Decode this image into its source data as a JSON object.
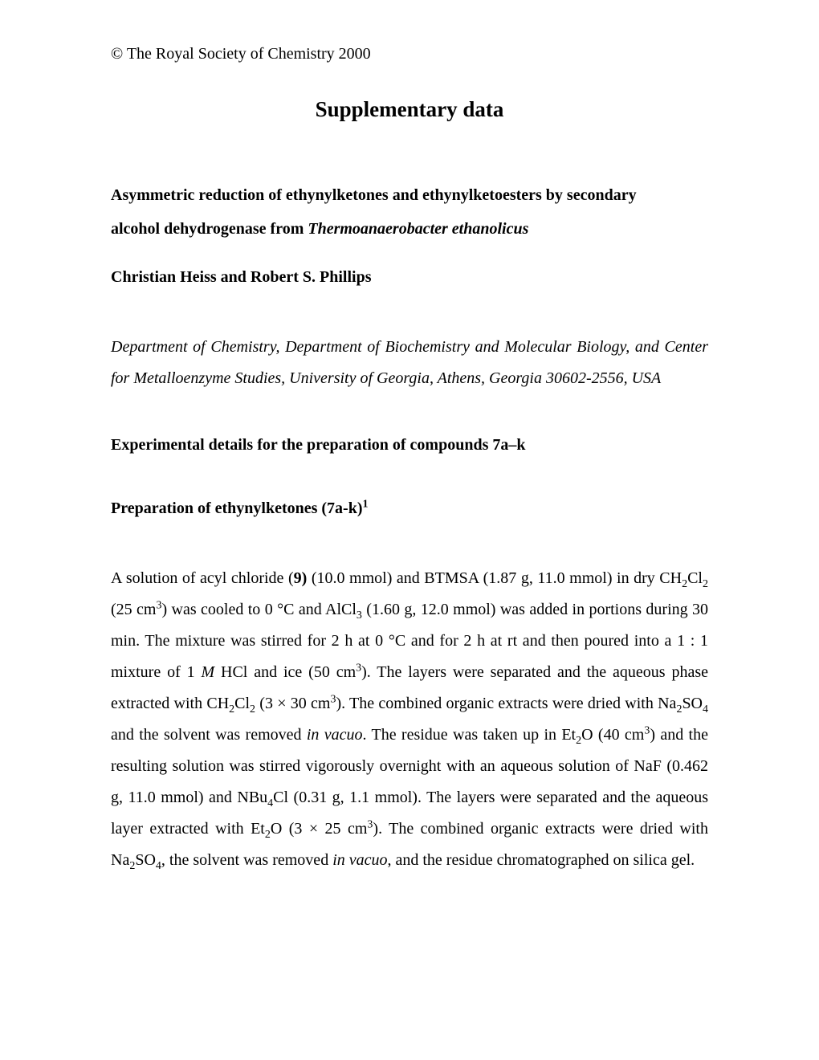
{
  "copyright": "© The Royal Society of Chemistry 2000",
  "doc_title": "Supplementary data",
  "article_title_line1": "Asymmetric reduction of ethynylketones and ethynylketoesters by secondary",
  "article_title_line2_pre": "alcohol dehydrogenase from ",
  "article_title_line2_species": "Thermoanaerobacter ethanolicus",
  "authors": "Christian Heiss and Robert S. Phillips",
  "affiliation": "Department of Chemistry, Department of Biochemistry and Molecular Biology, and Center for Metalloenzyme Studies, University of Georgia, Athens, Georgia 30602-2556, USA",
  "section_heading": "Experimental details for the preparation of compounds 7a–k",
  "subsection_heading_pre": "Preparation of ethynylketones (7a-k)",
  "subsection_heading_ref": "1",
  "body": {
    "p1_a": "A solution of acyl chloride (",
    "p1_bold9": "9)",
    "p1_b": " (10.0 mmol) and BTMSA (1.87 g, 11.0 mmol) in dry CH",
    "p1_c": "Cl",
    "p1_d": " (25 cm",
    "p1_e": ") was cooled to 0 °C and AlCl",
    "p1_f": " (1.60 g, 12.0 mmol) was added in portions during 30 min. The mixture was stirred for 2 h at 0 °C and for 2 h at rt and then poured into a 1 : 1 mixture of 1 ",
    "p1_M": "M",
    "p1_g": " HCl and ice (50 cm",
    "p1_h": "). The layers were separated and the aqueous phase extracted with CH",
    "p1_i": "Cl",
    "p1_j": " (3 × 30 cm",
    "p1_k": "). The combined organic extracts were dried with Na",
    "p1_l": "SO",
    "p1_m": " and the solvent was removed ",
    "p1_invacuo1": "in vacuo",
    "p1_n": ". The residue was taken up in Et",
    "p1_o": "O (40 cm",
    "p1_p": ") and the resulting solution was stirred vigorously overnight with an aqueous solution of NaF (0.462 g, 11.0 mmol) and NBu",
    "p1_q": "Cl (0.31 g, 1.1 mmol). The layers were separated and the aqueous layer extracted with Et",
    "p1_r": "O (3 × 25 cm",
    "p1_s": "). The combined organic extracts were dried with Na",
    "p1_t": "SO",
    "p1_u": ", the solvent was removed ",
    "p1_invacuo2": "in vacuo",
    "p1_v": ", and the residue chromatographed on silica gel.",
    "sub2": "2",
    "sub3": "3",
    "sub4": "4",
    "sup3": "3"
  }
}
